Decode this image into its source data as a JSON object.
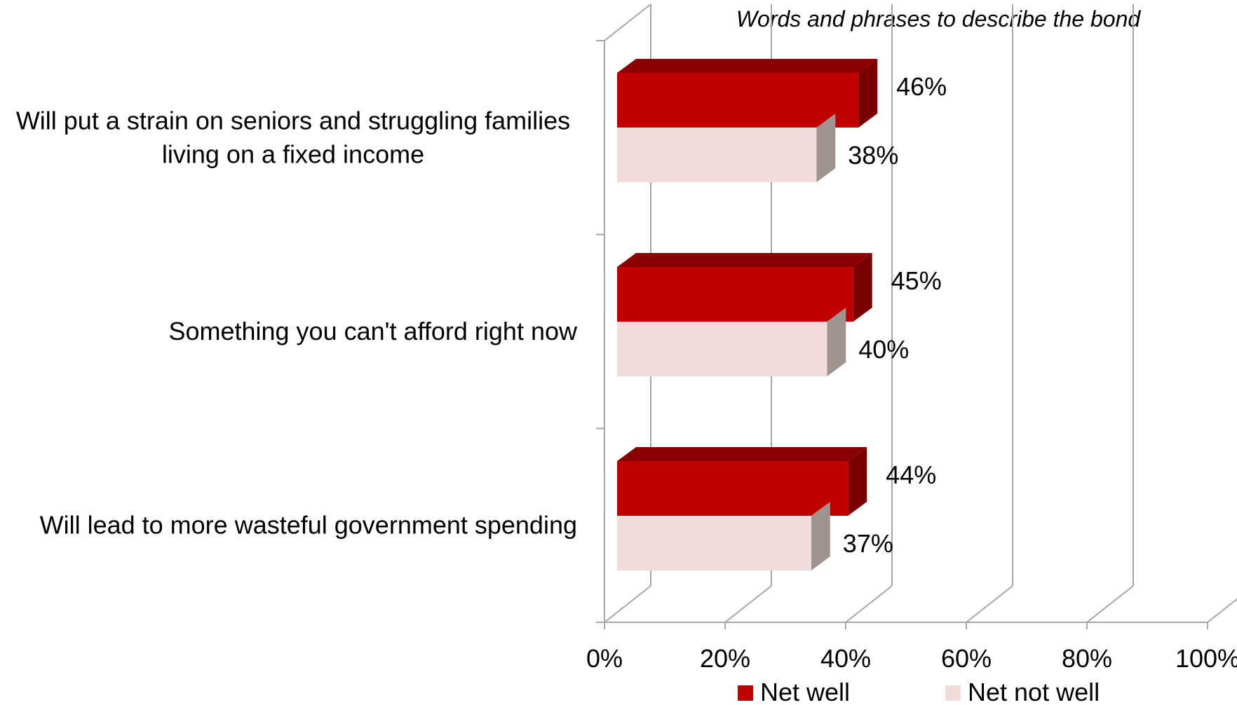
{
  "chart_data": {
    "type": "bar",
    "orientation": "horizontal",
    "title": "Words and phrases to describe the bond",
    "categories": [
      [
        "Will put a strain on seniors and struggling families",
        "living on a fixed income"
      ],
      [
        "Something you can't afford right now"
      ],
      [
        "Will lead to more wasteful government spending"
      ]
    ],
    "series": [
      {
        "name": "Net well",
        "values": [
          46,
          45,
          44
        ],
        "labels": [
          "46%",
          "45%",
          "44%"
        ],
        "color": "#c00000",
        "top_color": "#8b0000",
        "side_color": "#7a0000"
      },
      {
        "name": "Net not well",
        "values": [
          38,
          40,
          37
        ],
        "labels": [
          "38%",
          "40%",
          "37%"
        ],
        "color": "#f2dcdb",
        "top_color": "#e8cfcd",
        "side_color": "#a09492"
      }
    ],
    "x_ticks": [
      "0%",
      "20%",
      "40%",
      "60%",
      "80%",
      "100%"
    ],
    "xlim": [
      0,
      100
    ],
    "grid": true,
    "legend": "bottom"
  }
}
